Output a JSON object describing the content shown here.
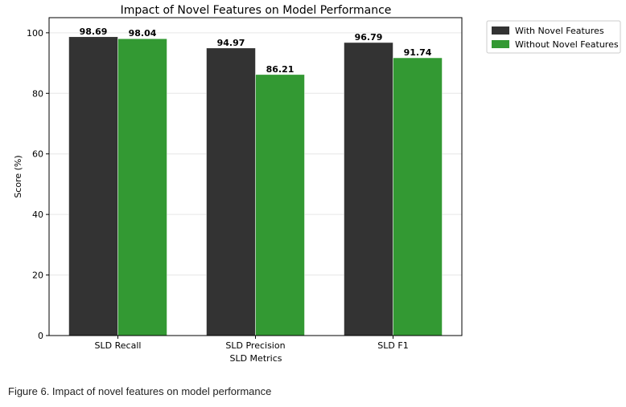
{
  "caption": "Figure 6. Impact of novel features on model performance",
  "chart_data": {
    "type": "bar",
    "title": "Impact of Novel Features on Model Performance",
    "xlabel": "SLD Metrics",
    "ylabel": "Score (%)",
    "categories": [
      "SLD Recall",
      "SLD Precision",
      "SLD F1"
    ],
    "series": [
      {
        "name": "With Novel Features",
        "color": "#333333",
        "values": [
          98.69,
          94.97,
          96.79
        ],
        "labels": [
          "98.69",
          "94.97",
          "96.79"
        ]
      },
      {
        "name": "Without Novel Features",
        "color": "#339933",
        "values": [
          98.04,
          86.21,
          91.74
        ],
        "labels": [
          "98.04",
          "86.21",
          "91.74"
        ]
      }
    ],
    "ylim": [
      0,
      105
    ],
    "yticks": [
      0,
      20,
      40,
      60,
      80,
      100
    ],
    "grid": true,
    "legend_position": "outside-top-right"
  }
}
